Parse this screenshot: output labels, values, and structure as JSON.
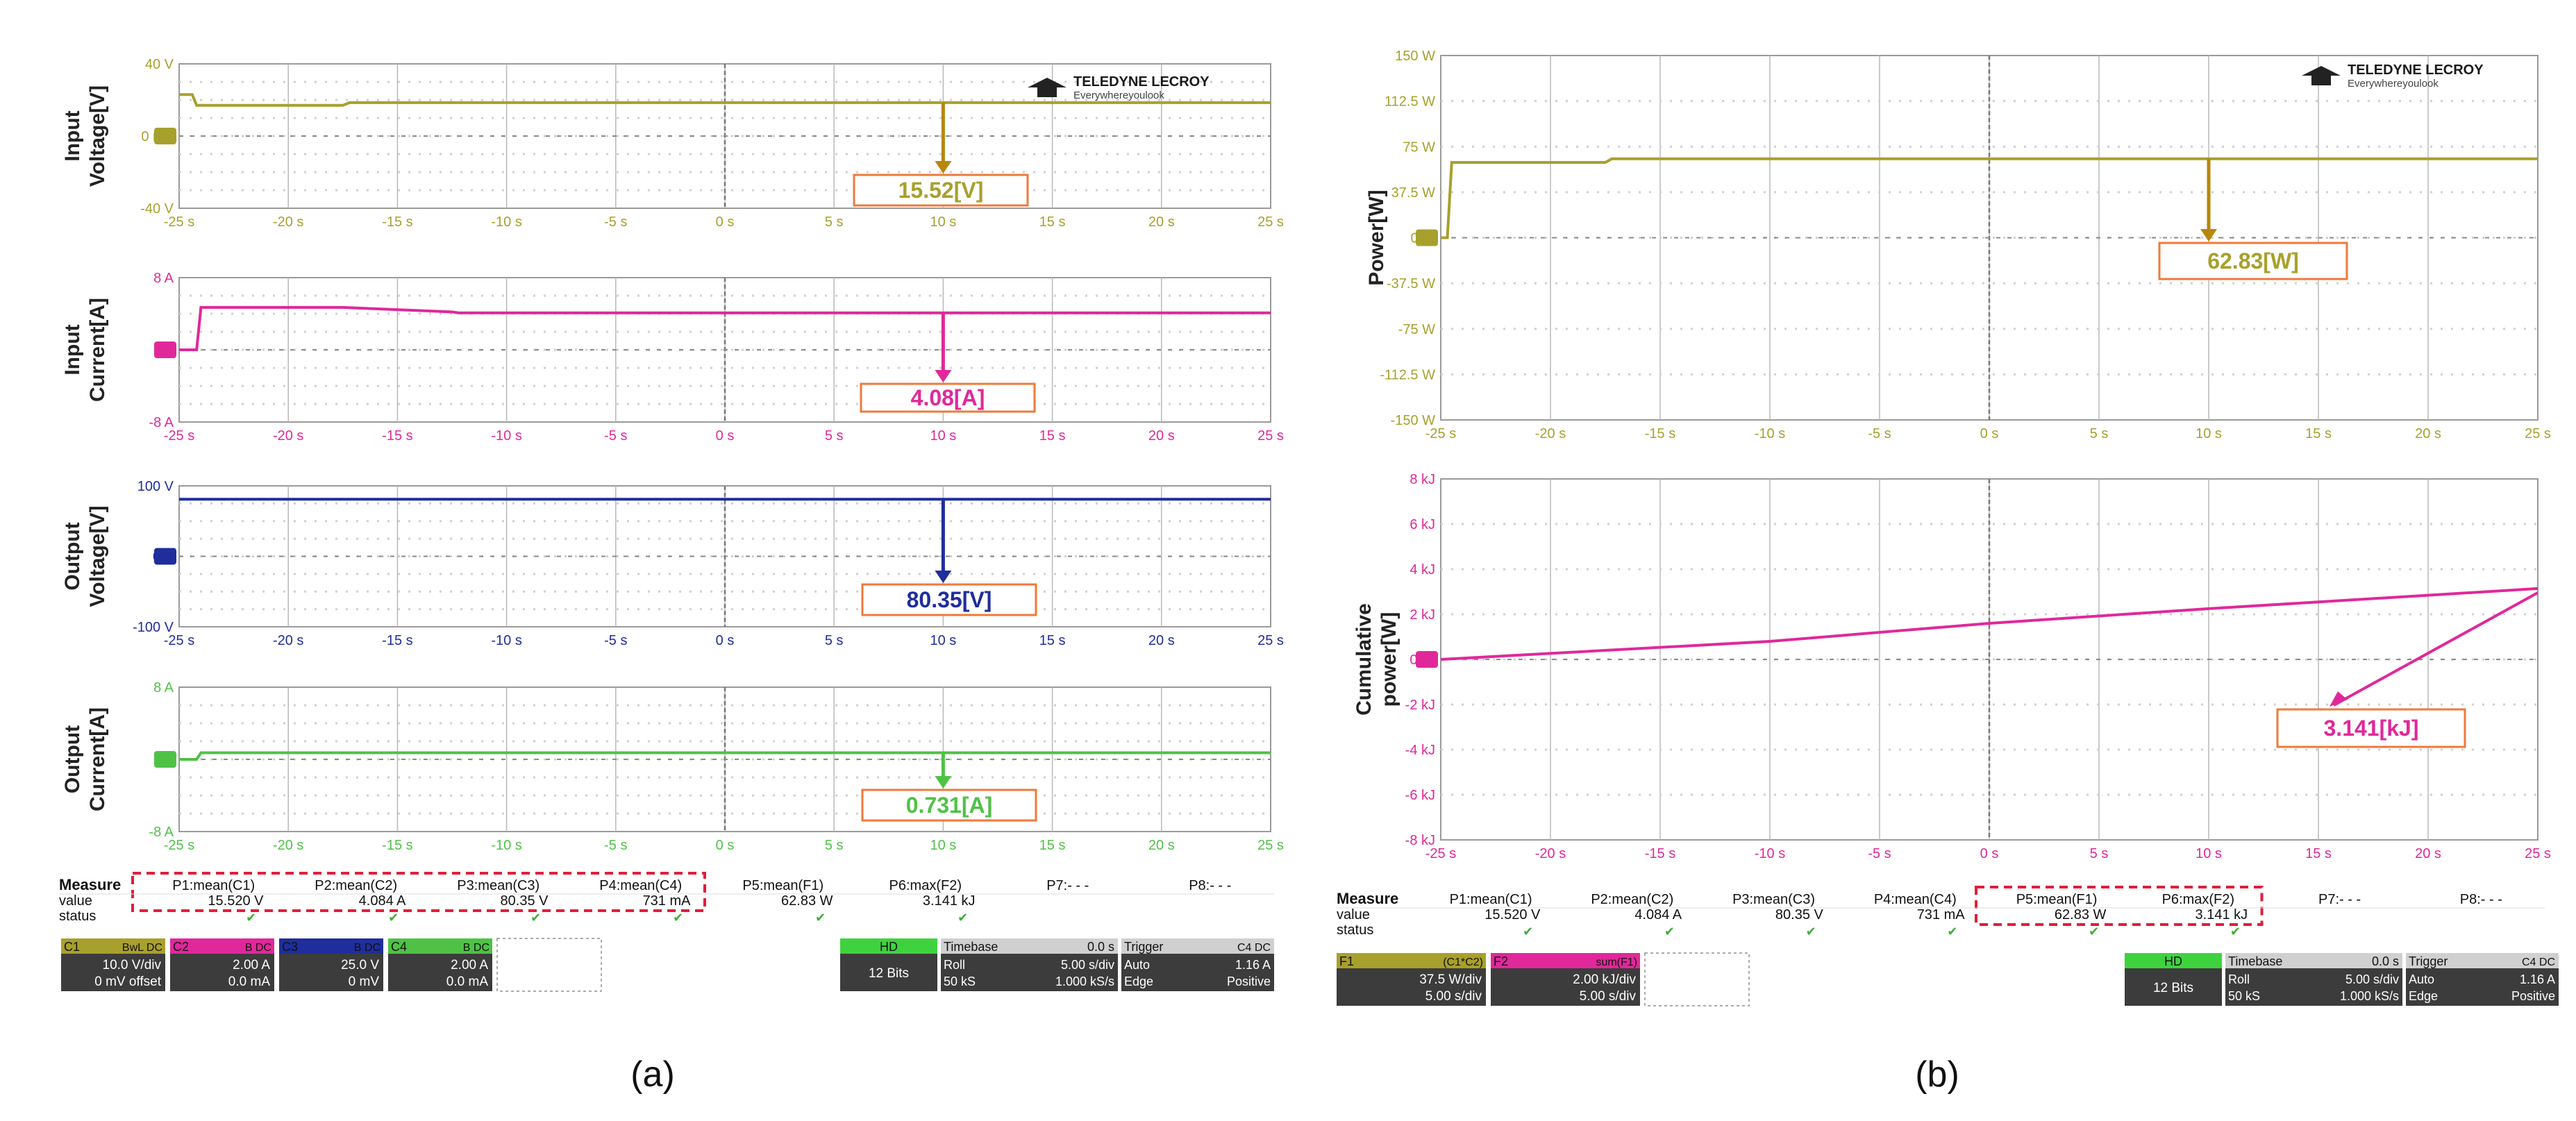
{
  "brand": {
    "line1": "TELEDYNE LECROY",
    "line2": "Everywhereyoulook"
  },
  "colors": {
    "c1": "#a8a02c",
    "c2": "#e0289a",
    "c3": "#1f2e9c",
    "c4": "#4fc246",
    "f1": "#a8a02c",
    "f2": "#e0289a",
    "annot_box": "#ee7a3a",
    "measure_box": "#e01e3a",
    "grid": "#b8b8b8",
    "dot": "#d0d0d0"
  },
  "time_ticks": [
    "-25 s",
    "-20 s",
    "-15 s",
    "-10 s",
    "-5 s",
    "0 s",
    "5 s",
    "10 s",
    "15 s",
    "20 s",
    "25 s"
  ],
  "panel_a": {
    "caption": "(a)",
    "measure": {
      "header": "Measure",
      "labels": [
        "P1:mean(C1)",
        "P2:mean(C2)",
        "P3:mean(C3)",
        "P4:mean(C4)",
        "P5:mean(F1)",
        "P6:max(F2)",
        "P7:- - -",
        "P8:- - -"
      ],
      "value_label": "value",
      "values": [
        "15.520 V",
        "4.084 A",
        "80.35 V",
        "731 mA",
        "62.83 W",
        "3.141 kJ",
        "",
        ""
      ],
      "status_label": "status"
    },
    "channels": [
      {
        "id": "C1",
        "badges": "BwL DC",
        "line1": "10.0 V/div",
        "line2": "0 mV offset"
      },
      {
        "id": "C2",
        "badges": "B DC",
        "line1": "2.00 A",
        "line2": "0.0 mA"
      },
      {
        "id": "C3",
        "badges": "B DC",
        "line1": "25.0 V",
        "line2": "0 mV"
      },
      {
        "id": "C4",
        "badges": "B DC",
        "line1": "2.00 A",
        "line2": "0.0 mA"
      }
    ],
    "hd": {
      "label": "HD",
      "bits": "12 Bits"
    },
    "timebase": {
      "title": "Timebase",
      "offset": "0.0 s",
      "mode": "Roll",
      "div": "5.00 s/div",
      "rate_l": "50 kS",
      "rate_r": "1.000 kS/s"
    },
    "trigger": {
      "title": "Trigger",
      "badges": "C4 DC",
      "mode": "Auto",
      "level": "1.16 A",
      "type": "Edge",
      "slope": "Positive"
    }
  },
  "panel_b": {
    "caption": "(b)",
    "measure": {
      "header": "Measure",
      "labels": [
        "P1:mean(C1)",
        "P2:mean(C2)",
        "P3:mean(C3)",
        "P4:mean(C4)",
        "P5:mean(F1)",
        "P6:max(F2)",
        "P7:- - -",
        "P8:- - -"
      ],
      "value_label": "value",
      "values": [
        "15.520 V",
        "4.084 A",
        "80.35 V",
        "731 mA",
        "62.83 W",
        "3.141 kJ",
        "",
        ""
      ],
      "status_label": "status"
    },
    "functions": [
      {
        "id": "F1",
        "formula": "(C1*C2)",
        "line1": "37.5 W/div",
        "line2": "5.00 s/div"
      },
      {
        "id": "F2",
        "formula": "sum(F1)",
        "line1": "2.00 kJ/div",
        "line2": "5.00 s/div"
      }
    ],
    "hd": {
      "label": "HD",
      "bits": "12 Bits"
    },
    "timebase": {
      "title": "Timebase",
      "offset": "0.0 s",
      "mode": "Roll",
      "div": "5.00 s/div",
      "rate_l": "50 kS",
      "rate_r": "1.000 kS/s"
    },
    "trigger": {
      "title": "Trigger",
      "badges": "C4 DC",
      "mode": "Auto",
      "level": "1.16 A",
      "type": "Edge",
      "slope": "Positive"
    }
  },
  "chart_data": [
    {
      "type": "line",
      "panel": "a",
      "ylabel": "Input Voltage[V]",
      "x": [
        -25,
        -24.4,
        -24.2,
        -17.5,
        -17.2,
        25
      ],
      "y": [
        23,
        23,
        17,
        17,
        18.5,
        18.5
      ],
      "ylim": [
        -40,
        40
      ],
      "yticks": [
        "40 V",
        "0 mV",
        "-40 V"
      ],
      "xlim": [
        -25,
        25
      ],
      "xlabel": "",
      "channel": "C1",
      "annotation": "15.52[V]",
      "marker_x": 10
    },
    {
      "type": "line",
      "panel": "a",
      "ylabel": "Input Current[A]",
      "x": [
        -25,
        -24.2,
        -24,
        -17.5,
        -12.5,
        -12.2,
        25
      ],
      "y": [
        0,
        0,
        4.7,
        4.7,
        4.2,
        4.1,
        4.1
      ],
      "ylim": [
        -8,
        8
      ],
      "yticks": [
        "8 A",
        "0 A",
        "-8 A"
      ],
      "xlim": [
        -25,
        25
      ],
      "xlabel": "",
      "channel": "C2",
      "annotation": "4.08[A]",
      "marker_x": 10
    },
    {
      "type": "line",
      "panel": "a",
      "ylabel": "Output Voltage[V]",
      "x": [
        -25,
        25
      ],
      "y": [
        81,
        81
      ],
      "ylim": [
        -100,
        100
      ],
      "yticks": [
        "100 V",
        "0 V",
        "-100 V"
      ],
      "xlim": [
        -25,
        25
      ],
      "xlabel": "",
      "channel": "C3",
      "annotation": "80.35[V]",
      "marker_x": 10
    },
    {
      "type": "line",
      "panel": "a",
      "ylabel": "Output Current[A]",
      "x": [
        -25,
        -24.2,
        -24,
        25
      ],
      "y": [
        0,
        0,
        0.73,
        0.73
      ],
      "ylim": [
        -8,
        8
      ],
      "yticks": [
        "8 A",
        "0 A",
        "-8 A"
      ],
      "xlim": [
        -25,
        25
      ],
      "xlabel": "",
      "channel": "C4",
      "annotation": "0.731[A]",
      "marker_x": 10
    },
    {
      "type": "line",
      "panel": "b",
      "ylabel": "Power[W]",
      "x": [
        -25,
        -24.7,
        -24.5,
        -17.5,
        -17.2,
        25
      ],
      "y": [
        0,
        0,
        62,
        62,
        65,
        65
      ],
      "ylim": [
        -150,
        150
      ],
      "yticks": [
        "150 W",
        "112.5 W",
        "75 W",
        "37.5 W",
        "0 W",
        "-37.5 W",
        "-75 W",
        "-112.5 W",
        "-150 W"
      ],
      "xlim": [
        -25,
        25
      ],
      "xlabel": "",
      "channel": "F1",
      "annotation": "62.83[W]",
      "marker_x": 10
    },
    {
      "type": "line",
      "panel": "b",
      "ylabel": "Cumulative power[W]",
      "x": [
        -25,
        -10,
        0,
        10,
        25
      ],
      "y": [
        0,
        0.8,
        1.6,
        2.25,
        3.141
      ],
      "ylim": [
        -8,
        8
      ],
      "yticks": [
        "8 kJ",
        "6 kJ",
        "4 kJ",
        "2 kJ",
        "0 kJ",
        "-2 kJ",
        "-4 kJ",
        "-6 kJ",
        "-8 kJ"
      ],
      "xlim": [
        -25,
        25
      ],
      "xlabel": "",
      "channel": "F2",
      "annotation": "3.141[kJ]",
      "marker_x": 25
    }
  ]
}
